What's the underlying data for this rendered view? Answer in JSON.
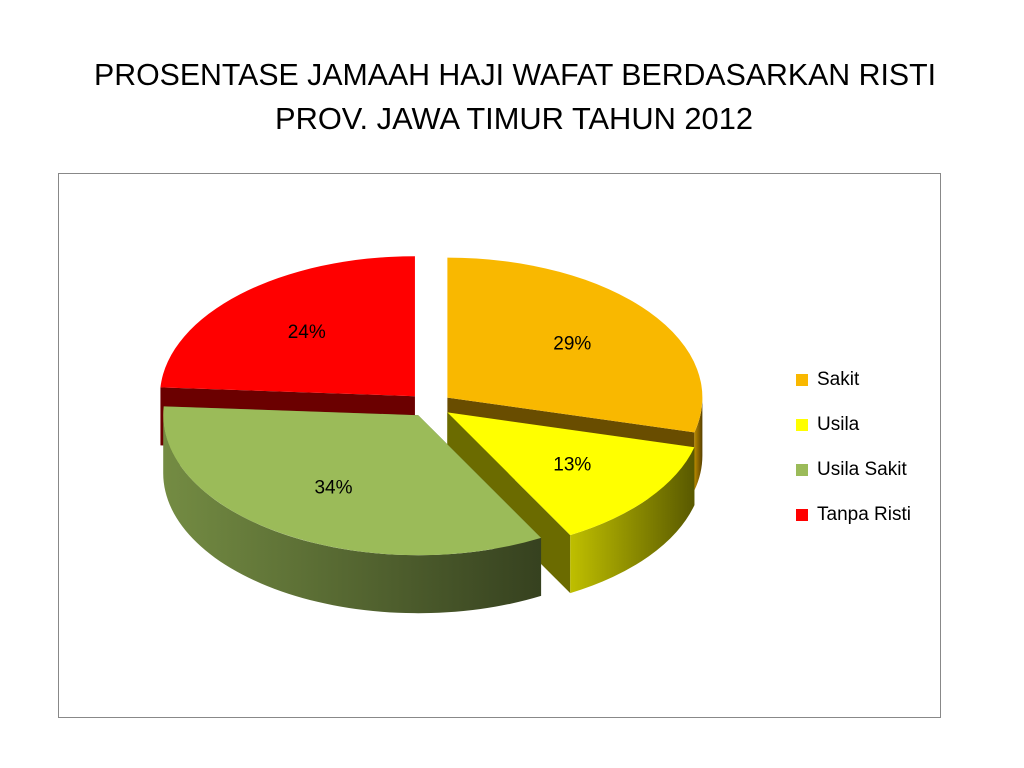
{
  "chart_data": {
    "type": "pie3d",
    "title": [
      "PROSENTASE JAMAAH HAJI WAFAT BERDASARKAN RISTI",
      "PROV. JAWA TIMUR TAHUN  2012"
    ],
    "categories": [
      "Sakit",
      "Usila",
      "Usila Sakit",
      "Tanpa Risti"
    ],
    "values": [
      29,
      13,
      34,
      24
    ],
    "value_labels": [
      "29%",
      "13%",
      "34%",
      "24%"
    ],
    "colors": [
      "#f9b800",
      "#ffff00",
      "#9bbb59",
      "#ff0000"
    ],
    "legend": "right"
  }
}
